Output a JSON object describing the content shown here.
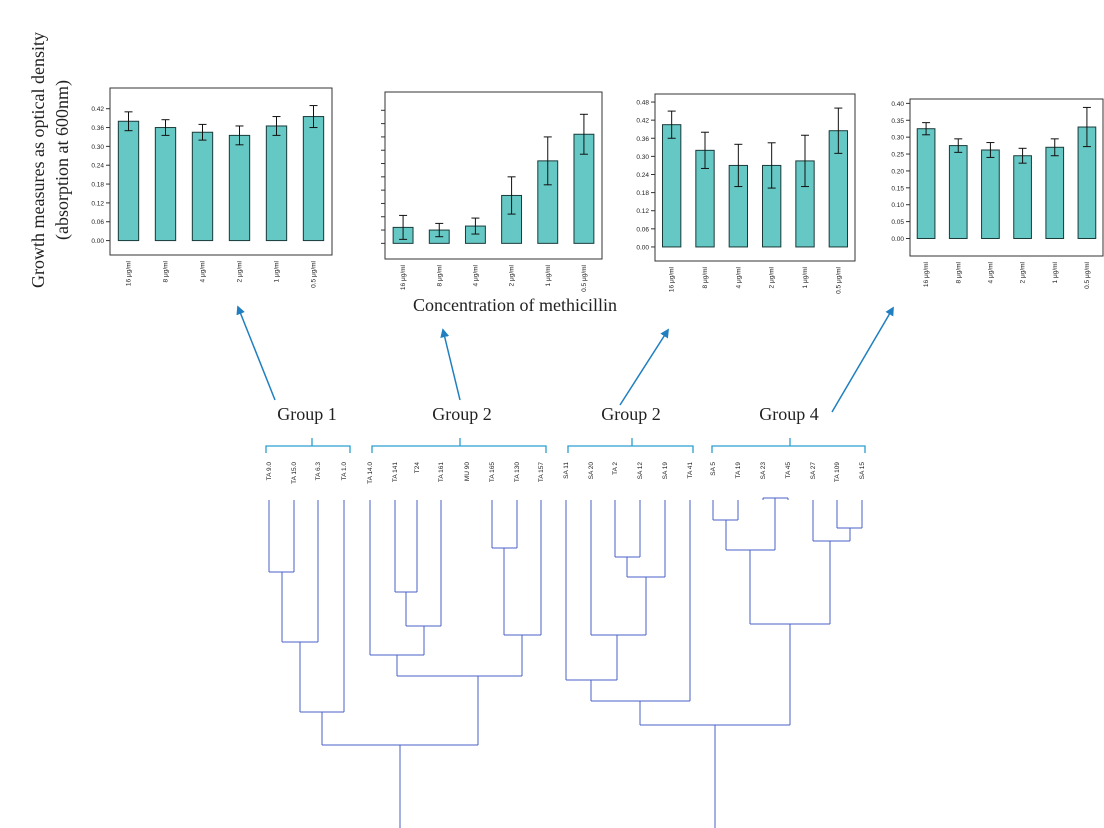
{
  "figure": {
    "y_axis_title": [
      "Growth measures as optical density",
      "(absorption at 600nm)"
    ],
    "x_axis_title": "Concentration of methicillin",
    "group_labels": [
      "Group 1",
      "Group 2",
      "Group 2",
      "Group 4"
    ]
  },
  "chart_data": [
    {
      "type": "bar",
      "categories": [
        "16 μg/ml",
        "8 μg/ml",
        "4 μg/ml",
        "2 μg/ml",
        "1 μg/ml",
        "0.5 μg/ml"
      ],
      "values": [
        0.38,
        0.36,
        0.345,
        0.335,
        0.365,
        0.395
      ],
      "errors": [
        0.03,
        0.025,
        0.025,
        0.03,
        0.03,
        0.035
      ],
      "ylim": [
        -0.03,
        0.47
      ],
      "yticks": [
        "0.00",
        "0.06",
        "0.12",
        "0.18",
        "0.24",
        "0.30",
        "0.36",
        "0.42"
      ],
      "ytick_values": [
        0,
        0.06,
        0.12,
        0.18,
        0.24,
        0.3,
        0.36,
        0.42
      ],
      "bar_color": "#66c8c4",
      "show_tick_labels": true
    },
    {
      "type": "bar",
      "categories": [
        "16 μg/ml",
        "8 μg/ml",
        "4 μg/ml",
        "2 μg/ml",
        "1 μg/ml",
        "0.5 μg/ml"
      ],
      "values": [
        0.06,
        0.05,
        0.065,
        0.18,
        0.31,
        0.41
      ],
      "errors": [
        0.045,
        0.025,
        0.03,
        0.07,
        0.09,
        0.075
      ],
      "ylim": [
        -0.04,
        0.55
      ],
      "yticks": [
        "",
        "",
        "",
        "",
        "",
        "",
        "",
        "",
        "",
        "",
        ""
      ],
      "ytick_values": [
        0,
        0.05,
        0.1,
        0.15,
        0.2,
        0.25,
        0.3,
        0.35,
        0.4,
        0.45,
        0.5
      ],
      "bar_color": "#66c8c4",
      "show_tick_labels": false
    },
    {
      "type": "bar",
      "categories": [
        "16 μg/ml",
        "8 μg/ml",
        "4 μg/ml",
        "2 μg/ml",
        "1 μg/ml",
        "0.5 μg/ml"
      ],
      "values": [
        0.405,
        0.32,
        0.27,
        0.27,
        0.285,
        0.385
      ],
      "errors": [
        0.045,
        0.06,
        0.07,
        0.075,
        0.085,
        0.075
      ],
      "ylim": [
        -0.03,
        0.5
      ],
      "yticks": [
        "0.00",
        "0.06",
        "0.12",
        "0.18",
        "0.24",
        "0.30",
        "0.36",
        "0.42",
        "0.48"
      ],
      "ytick_values": [
        0,
        0.06,
        0.12,
        0.18,
        0.24,
        0.3,
        0.36,
        0.42,
        0.48
      ],
      "bar_color": "#66c8c4",
      "show_tick_labels": true
    },
    {
      "type": "bar",
      "categories": [
        "16 μg/ml",
        "8 μg/ml",
        "4 μg/ml",
        "2 μg/ml",
        "1 μg/ml",
        "0.5 μg/ml"
      ],
      "values": [
        0.325,
        0.275,
        0.262,
        0.245,
        0.27,
        0.33
      ],
      "errors": [
        0.018,
        0.02,
        0.022,
        0.022,
        0.025,
        0.058
      ],
      "ylim": [
        -0.04,
        0.41
      ],
      "yticks": [
        "0.00",
        "0.05",
        "0.10",
        "0.15",
        "0.20",
        "0.25",
        "0.30",
        "0.35",
        "0.40"
      ],
      "ytick_values": [
        0,
        0.05,
        0.1,
        0.15,
        0.2,
        0.25,
        0.3,
        0.35,
        0.4
      ],
      "bar_color": "#66c8c4",
      "show_tick_labels": true
    }
  ],
  "dendrogram": {
    "leaf_labels": [
      "TA 9.0",
      "TA 15.0",
      "TA 6.3",
      "TA 1.0",
      "TA 14.0",
      "TA 141",
      "T24",
      "TA 161",
      "MU 90",
      "TA 165",
      "TA 130",
      "TA 157",
      "SA 11",
      "SA 20",
      "TA 2",
      "SA 12",
      "SA 19",
      "TA 41",
      "SA 5",
      "TA 19",
      "SA 23",
      "TA 45",
      "SA 27",
      "TA 109",
      "SA 15"
    ],
    "line_color": "#4a62c8",
    "bracket_color": "#2a9fd0",
    "arrow_color": "#1f7fc0"
  }
}
